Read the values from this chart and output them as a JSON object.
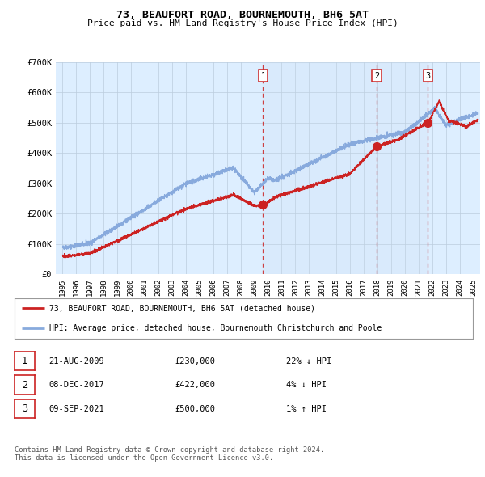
{
  "title": "73, BEAUFORT ROAD, BOURNEMOUTH, BH6 5AT",
  "subtitle": "Price paid vs. HM Land Registry's House Price Index (HPI)",
  "background_color": "#ffffff",
  "chart_bg_color": "#ddeeff",
  "grid_color": "#bbccdd",
  "hpi_line_color": "#88aadd",
  "price_line_color": "#cc2222",
  "marker_color": "#cc2222",
  "vline_color": "#cc2222",
  "purchases": [
    {
      "label": "1",
      "date": 2009.644,
      "price": 230000
    },
    {
      "label": "2",
      "date": 2017.935,
      "price": 422000
    },
    {
      "label": "3",
      "date": 2021.686,
      "price": 500000
    }
  ],
  "table_rows": [
    {
      "num": "1",
      "date": "21-AUG-2009",
      "price": "£230,000",
      "hpi": "22% ↓ HPI"
    },
    {
      "num": "2",
      "date": "08-DEC-2017",
      "price": "£422,000",
      "hpi": "4% ↓ HPI"
    },
    {
      "num": "3",
      "date": "09-SEP-2021",
      "price": "£500,000",
      "hpi": "1% ↑ HPI"
    }
  ],
  "legend_entries": [
    "73, BEAUFORT ROAD, BOURNEMOUTH, BH6 5AT (detached house)",
    "HPI: Average price, detached house, Bournemouth Christchurch and Poole"
  ],
  "footer": "Contains HM Land Registry data © Crown copyright and database right 2024.\nThis data is licensed under the Open Government Licence v3.0.",
  "ylim": [
    0,
    700000
  ],
  "yticks": [
    0,
    100000,
    200000,
    300000,
    400000,
    500000,
    600000,
    700000
  ],
  "ytick_labels": [
    "£0",
    "£100K",
    "£200K",
    "£300K",
    "£400K",
    "£500K",
    "£600K",
    "£700K"
  ],
  "xmin": 1994.5,
  "xmax": 2025.5
}
